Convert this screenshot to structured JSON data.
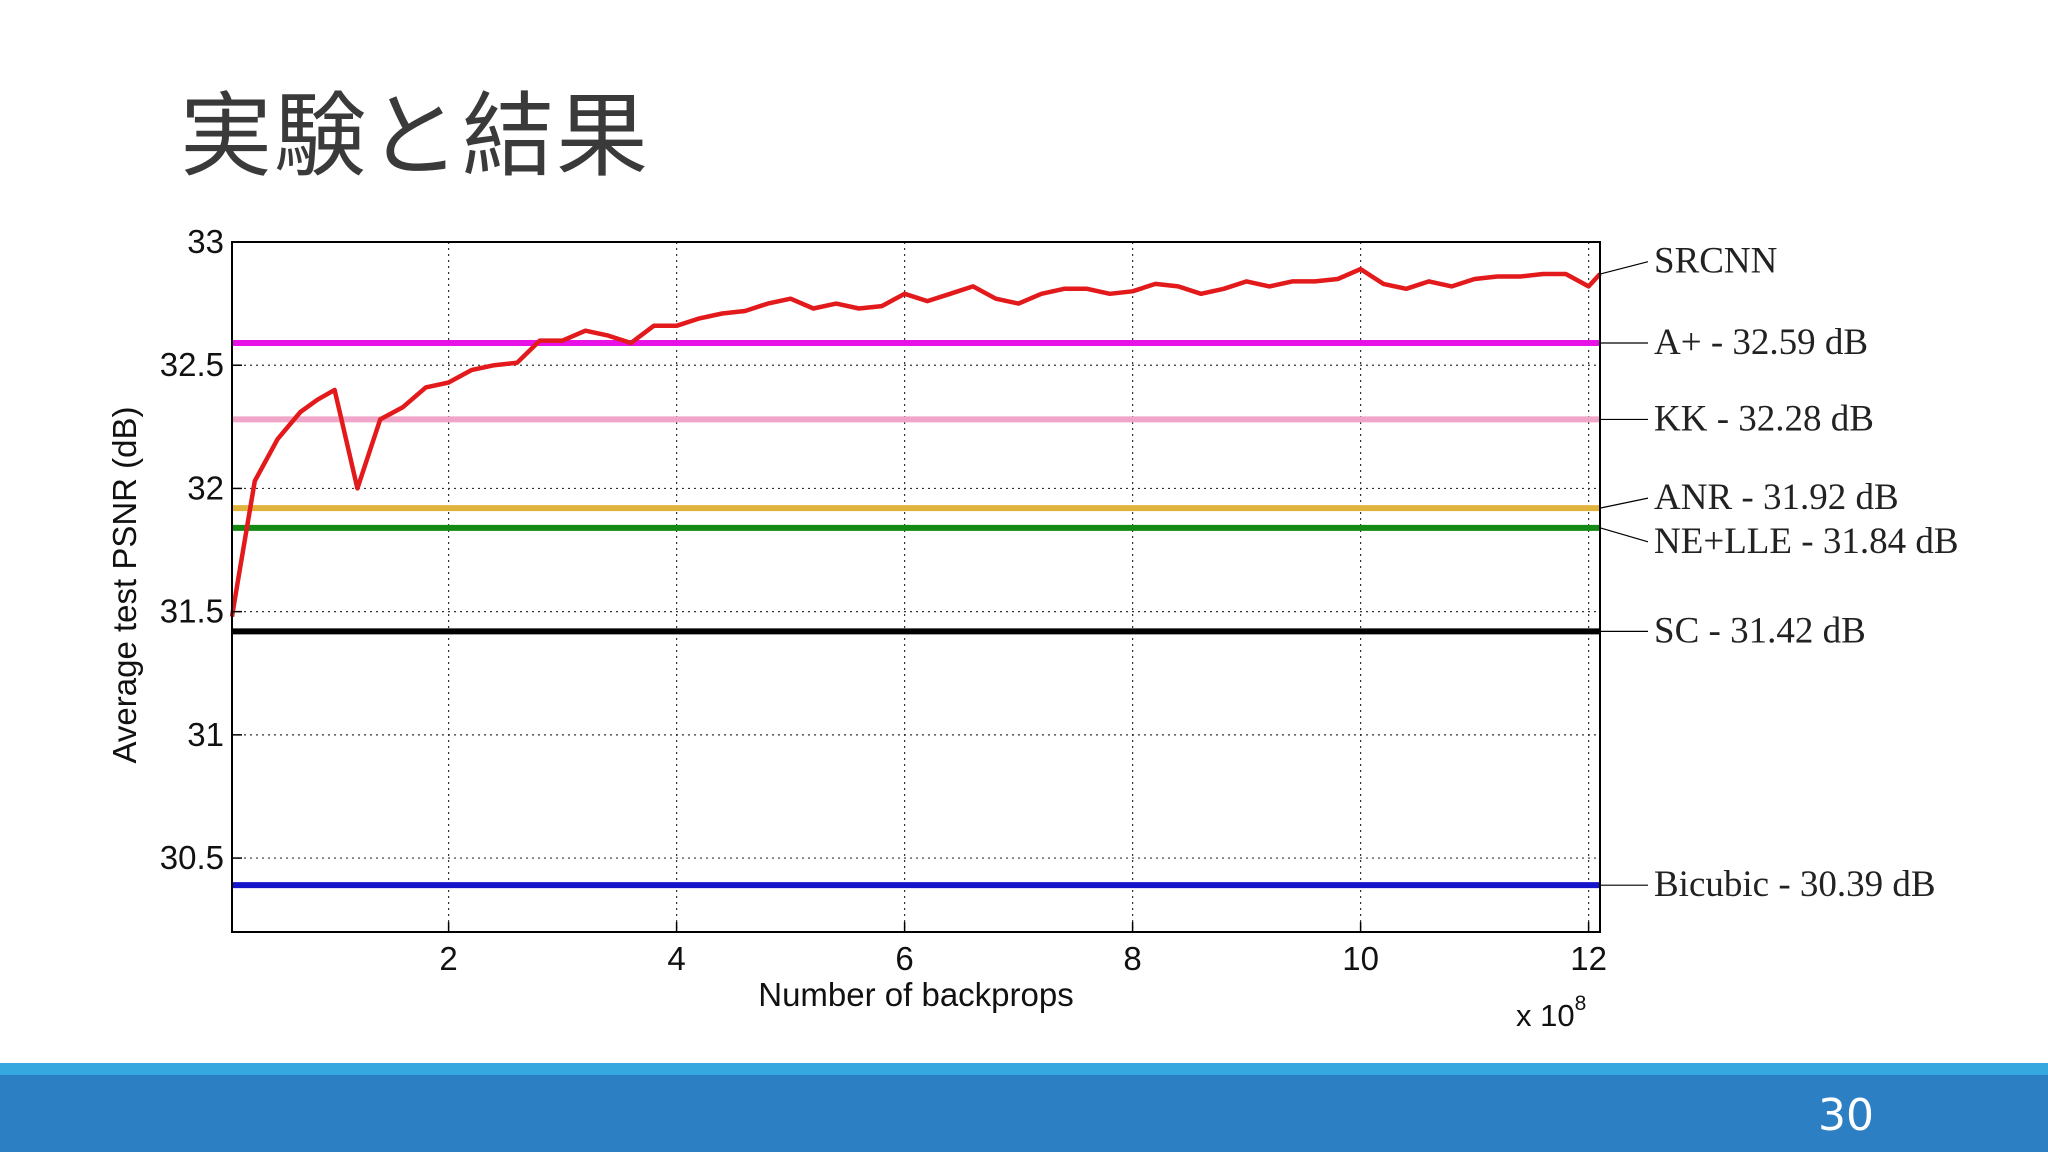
{
  "slide": {
    "title": "実験と結果",
    "page_number": "30"
  },
  "chart_data": {
    "type": "line",
    "xlabel": "Number of backprops",
    "ylabel": "Average test PSNR (dB)",
    "x_multiplier": "x 10",
    "x_multiplier_exp": "8",
    "xlim": [
      0.1,
      12.1
    ],
    "ylim": [
      30.2,
      33
    ],
    "x_ticks": [
      2,
      4,
      6,
      8,
      10,
      12
    ],
    "y_ticks": [
      30.5,
      31,
      31.5,
      32,
      32.5,
      33
    ],
    "y_tick_labels": [
      "30.5",
      "31",
      "31.5",
      "32",
      "32.5",
      "33"
    ],
    "grid": true,
    "series": [
      {
        "name": "SRCNN",
        "color": "#e31a1c",
        "x": [
          0.1,
          0.15,
          0.3,
          0.5,
          0.7,
          0.85,
          1.0,
          1.2,
          1.4,
          1.6,
          1.8,
          2.0,
          2.2,
          2.4,
          2.6,
          2.8,
          3.0,
          3.2,
          3.4,
          3.6,
          3.8,
          4.0,
          4.2,
          4.4,
          4.6,
          4.8,
          5.0,
          5.2,
          5.4,
          5.6,
          5.8,
          6.0,
          6.2,
          6.4,
          6.6,
          6.8,
          7.0,
          7.2,
          7.4,
          7.6,
          7.8,
          8.0,
          8.2,
          8.4,
          8.6,
          8.8,
          9.0,
          9.2,
          9.4,
          9.6,
          9.8,
          10.0,
          10.2,
          10.4,
          10.6,
          10.8,
          11.0,
          11.2,
          11.4,
          11.6,
          11.8,
          12.0,
          12.1
        ],
        "y": [
          31.48,
          31.62,
          32.03,
          32.2,
          32.31,
          32.36,
          32.4,
          32.0,
          32.28,
          32.33,
          32.41,
          32.43,
          32.48,
          32.5,
          32.51,
          32.6,
          32.6,
          32.64,
          32.62,
          32.59,
          32.66,
          32.66,
          32.69,
          32.71,
          32.72,
          32.75,
          32.77,
          32.73,
          32.75,
          32.73,
          32.74,
          32.79,
          32.76,
          32.79,
          32.82,
          32.77,
          32.75,
          32.79,
          32.81,
          32.81,
          32.79,
          32.8,
          32.83,
          32.82,
          32.79,
          32.81,
          32.84,
          32.82,
          32.84,
          32.84,
          32.85,
          32.89,
          32.83,
          32.81,
          32.84,
          32.82,
          32.85,
          32.86,
          32.86,
          32.87,
          32.87,
          32.82,
          32.87
        ]
      }
    ],
    "baselines": [
      {
        "name": "A+",
        "value": 32.59,
        "label": "A+ - 32.59 dB",
        "color": "#e612e6"
      },
      {
        "name": "KK",
        "value": 32.28,
        "label": "KK - 32.28 dB",
        "color": "#f0a6c8"
      },
      {
        "name": "ANR",
        "value": 31.92,
        "label": "ANR - 31.92 dB",
        "color": "#e0b43c"
      },
      {
        "name": "NE+LLE",
        "value": 31.84,
        "label": "NE+LLE - 31.84 dB",
        "color": "#138a13"
      },
      {
        "name": "SC",
        "value": 31.42,
        "label": "SC - 31.42 dB",
        "color": "#000000"
      },
      {
        "name": "Bicubic",
        "value": 30.39,
        "label": "Bicubic - 30.39 dB",
        "color": "#1414c8"
      }
    ]
  }
}
